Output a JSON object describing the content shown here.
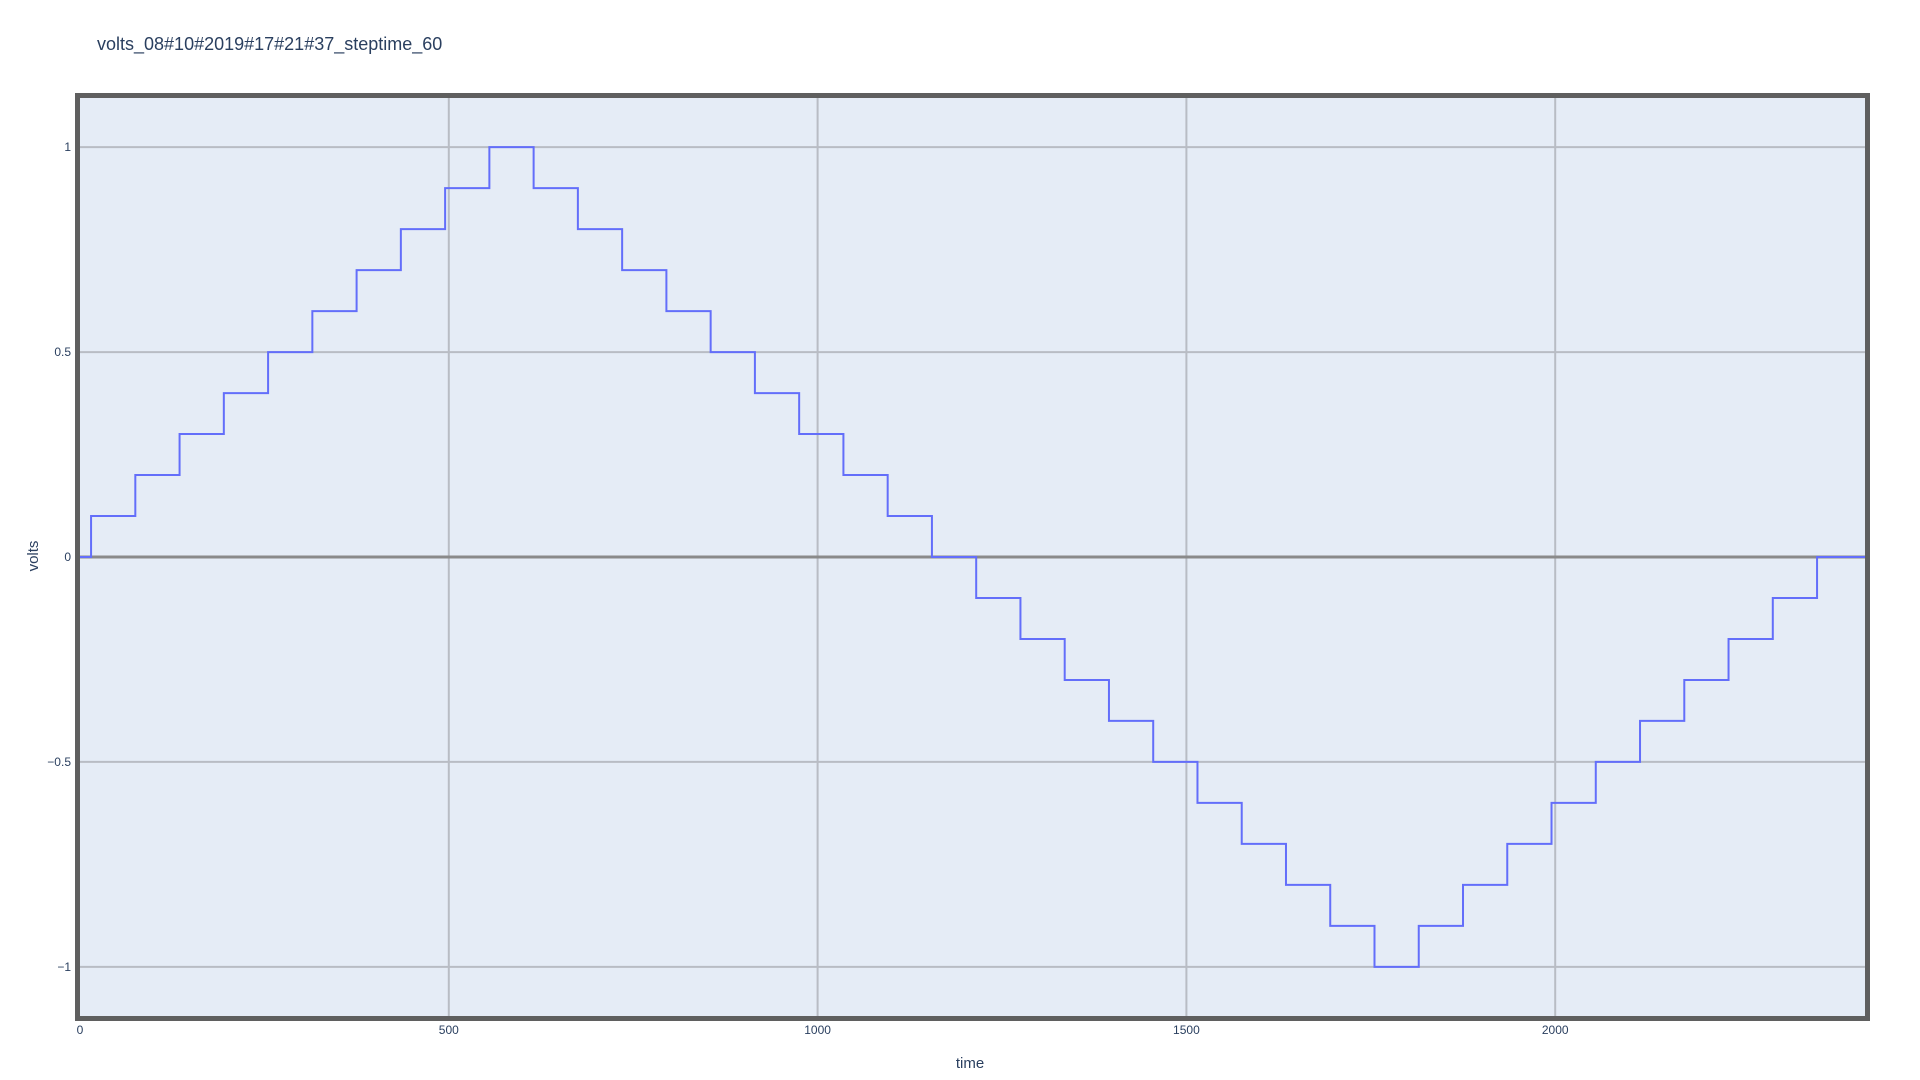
{
  "chart_data": {
    "type": "line",
    "title": "volts_08#10#2019#17#21#37_steptime_60",
    "xlabel": "time",
    "ylabel": "volts",
    "xlim": [
      0,
      2420
    ],
    "ylim": [
      -1.12,
      1.12
    ],
    "x_ticks": [
      0,
      500,
      1000,
      1500,
      2000
    ],
    "y_ticks": [
      -1,
      -0.5,
      0,
      0.5,
      1
    ],
    "y_tick_labels": [
      "−1",
      "−0.5",
      "0",
      "0.5",
      "1"
    ],
    "grid": true,
    "line_shape": "step",
    "colors": {
      "line": "#636efa",
      "plot_bg": "#e5ecf6",
      "grid": "#b8bcc4",
      "frame": "#5f5f5f",
      "zeroline": "#8a8a8a",
      "text": "#2a3f5f"
    },
    "series": [
      {
        "x": [
          0,
          15,
          75,
          135,
          195,
          255,
          315,
          375,
          435,
          495,
          555,
          615,
          675,
          735,
          795,
          855,
          915,
          975,
          1035,
          1095,
          1155,
          1215,
          1275,
          1335,
          1395,
          1455,
          1515,
          1575,
          1635,
          1695,
          1755,
          1815,
          1875,
          1935,
          1995,
          2055,
          2115,
          2175,
          2235,
          2295,
          2355,
          2420
        ],
        "y": [
          0,
          0.1,
          0.2,
          0.3,
          0.4,
          0.5,
          0.6,
          0.7,
          0.8,
          0.9,
          1.0,
          0.9,
          0.8,
          0.7,
          0.6,
          0.5,
          0.4,
          0.3,
          0.2,
          0.1,
          0,
          -0.1,
          -0.2,
          -0.3,
          -0.4,
          -0.5,
          -0.6,
          -0.7,
          -0.8,
          -0.9,
          -1.0,
          -0.9,
          -0.8,
          -0.7,
          -0.6,
          -0.5,
          -0.4,
          -0.3,
          -0.2,
          -0.1,
          0,
          0
        ]
      }
    ]
  }
}
